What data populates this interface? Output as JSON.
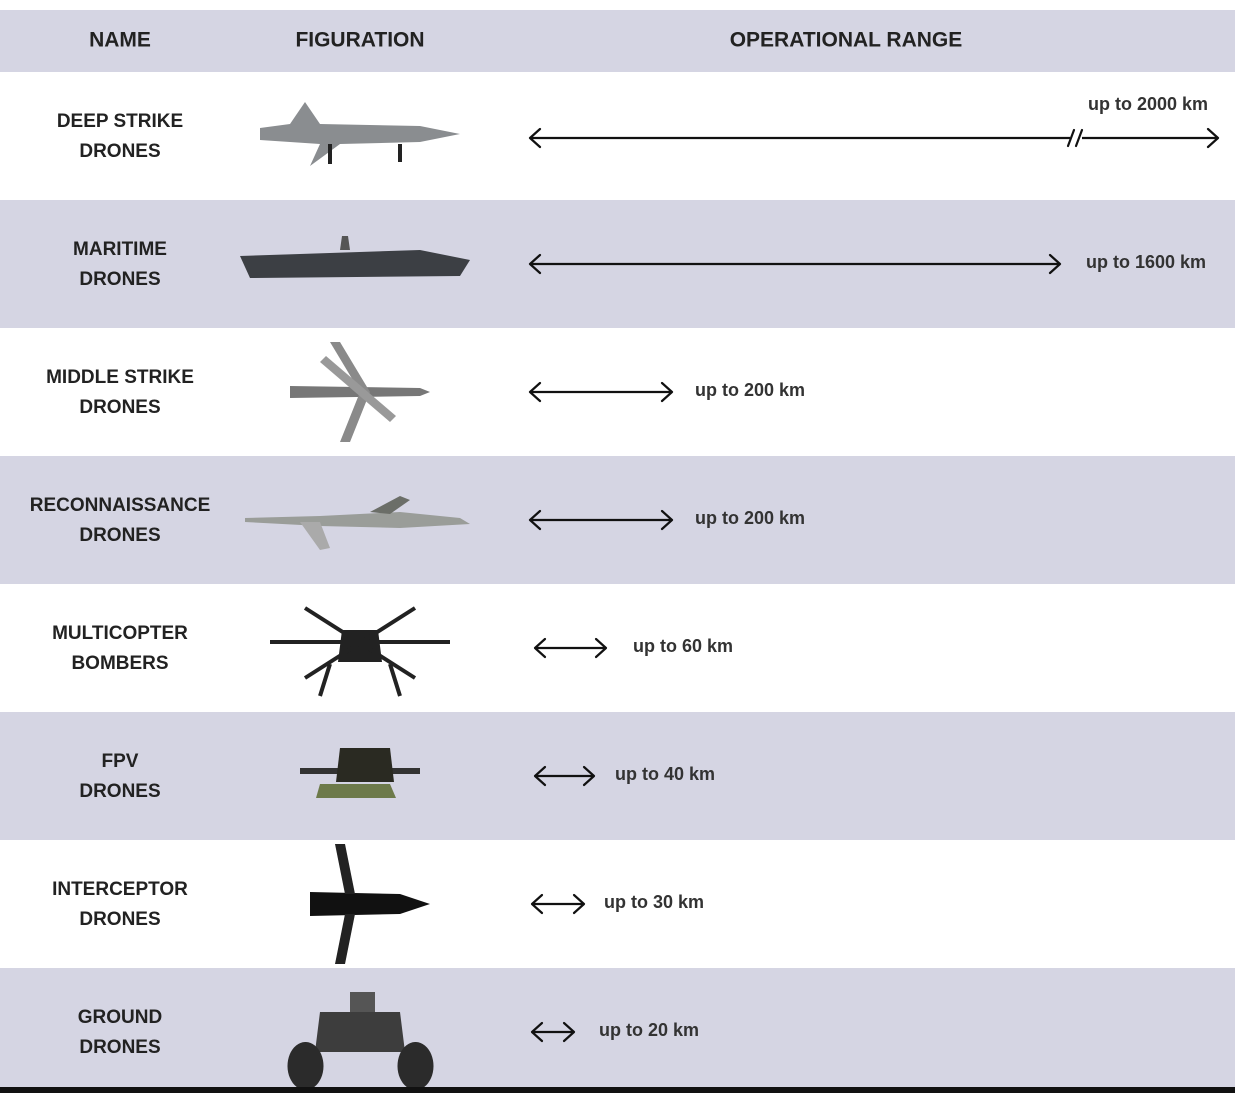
{
  "table": {
    "header": [
      "NAME",
      "FIGURATION",
      "OPERATIONAL RANGE"
    ],
    "rows": [
      {
        "name": [
          "DEEP STRIKE",
          "DRONES"
        ],
        "range": "up to 2000 km"
      },
      {
        "name": [
          "MARITIME",
          "DRONES"
        ],
        "range": "up to 1600 km"
      },
      {
        "name": [
          "MIDDLE STRIKE",
          "DRONES"
        ],
        "range": "up to 200 km"
      },
      {
        "name": [
          "RECONNAISSANCE",
          "DRONES"
        ],
        "range": "up to 200 km"
      },
      {
        "name": [
          "MULTICOPTER",
          "BOMBERS"
        ],
        "range": "up to 60 km"
      },
      {
        "name": [
          "FPV",
          "DRONES"
        ],
        "range": "up to 40 km"
      },
      {
        "name": [
          "INTERCEPTOR",
          "DRONES"
        ],
        "range": "up to 30 km"
      },
      {
        "name": [
          "GROUND",
          "DRONES"
        ],
        "range": "up to 20 km"
      }
    ]
  }
}
